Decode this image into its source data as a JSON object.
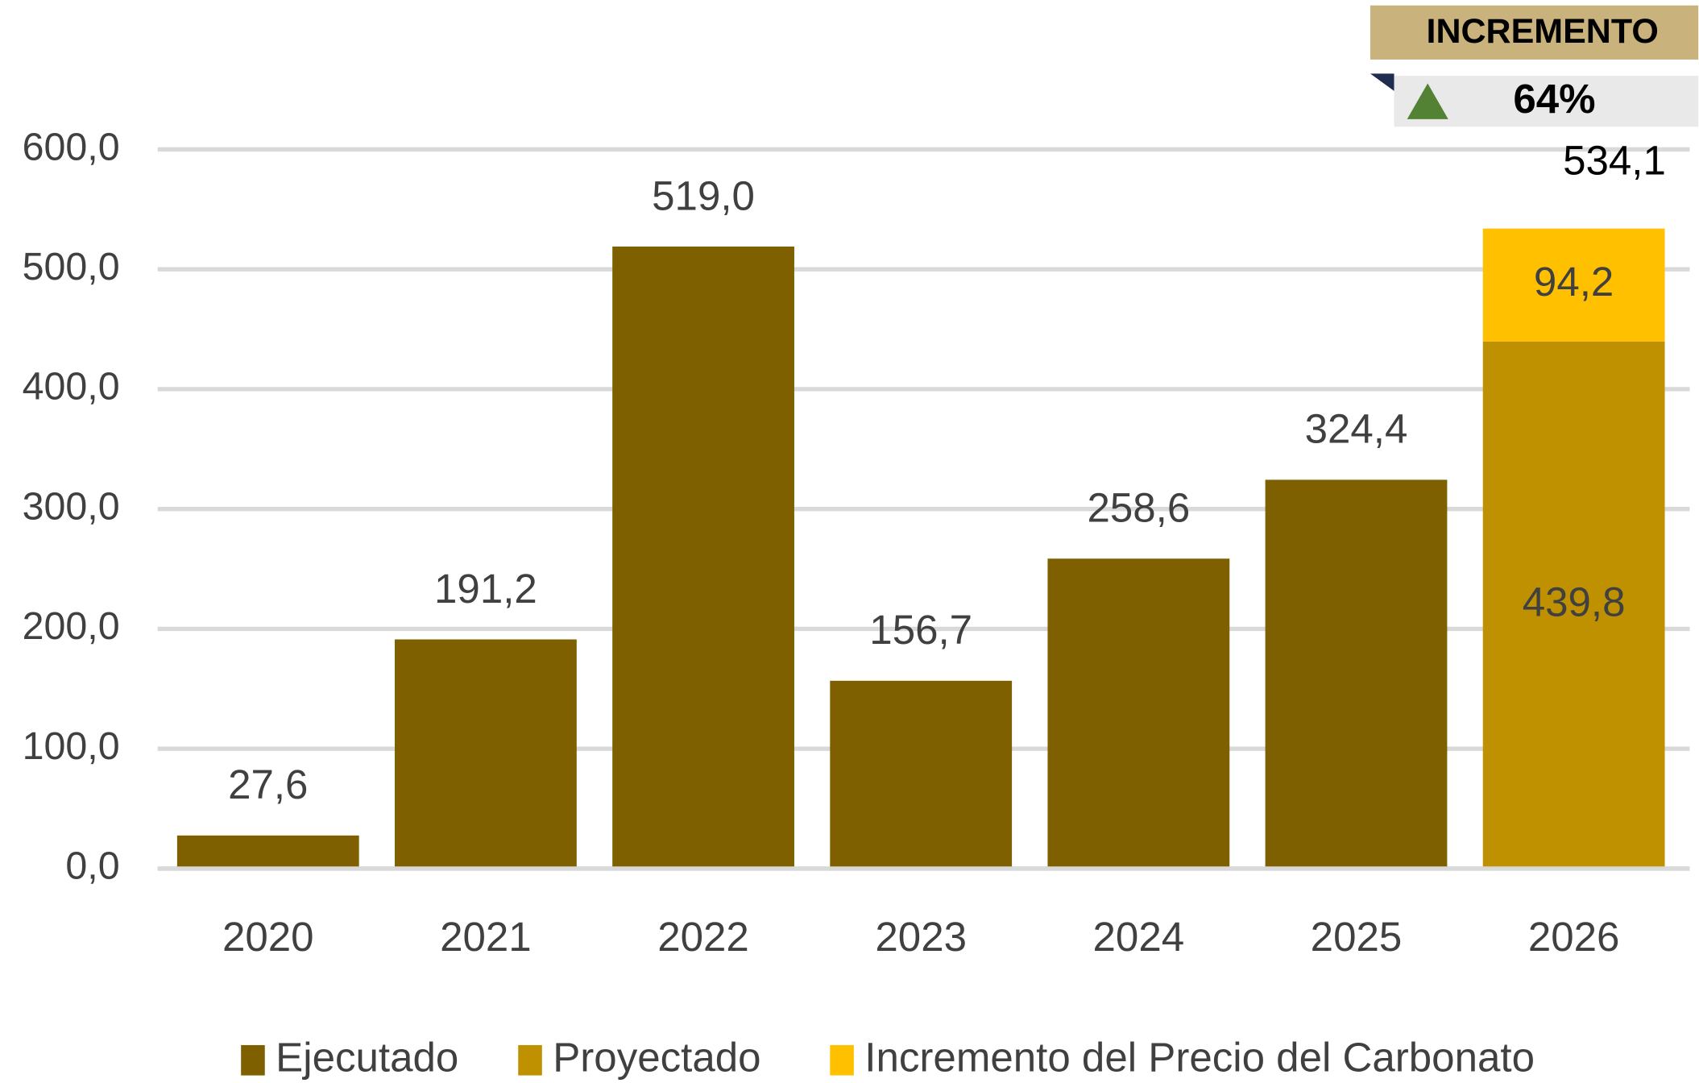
{
  "chart_data": {
    "type": "stacked_bar",
    "categories": [
      "2020",
      "2021",
      "2022",
      "2023",
      "2024",
      "2025",
      "2026"
    ],
    "series": [
      {
        "name": "Ejecutado",
        "color": "#7f6000",
        "values": [
          27.6,
          191.2,
          519.0,
          156.7,
          258.6,
          324.4,
          null
        ],
        "value_labels": [
          "27,6",
          "191,2",
          "519,0",
          "156,7",
          "258,6",
          "324,4",
          null
        ]
      },
      {
        "name": "Proyectado",
        "color": "#bf9000",
        "values": [
          null,
          null,
          null,
          null,
          null,
          null,
          439.8
        ],
        "value_labels": [
          null,
          null,
          null,
          null,
          null,
          null,
          "439,8"
        ]
      },
      {
        "name": "Incremento del Precio del Carbonato",
        "color": "#ffc000",
        "values": [
          null,
          null,
          null,
          null,
          null,
          null,
          94.2
        ],
        "value_labels": [
          null,
          null,
          null,
          null,
          null,
          null,
          "94,2"
        ]
      }
    ],
    "total": {
      "value": 534.1,
      "label": "534,1"
    },
    "ylim": [
      0,
      600
    ],
    "yticks": [
      {
        "value": 0,
        "label": "0,0"
      },
      {
        "value": 100,
        "label": "100,0"
      },
      {
        "value": 200,
        "label": "200,0"
      },
      {
        "value": 300,
        "label": "300,0"
      },
      {
        "value": 400,
        "label": "400,0"
      },
      {
        "value": 500,
        "label": "500,0"
      },
      {
        "value": 600,
        "label": "600,0"
      }
    ],
    "grid": true,
    "legend": "bottom",
    "badge": {
      "title": "INCREMENTO",
      "value": "64%"
    }
  }
}
